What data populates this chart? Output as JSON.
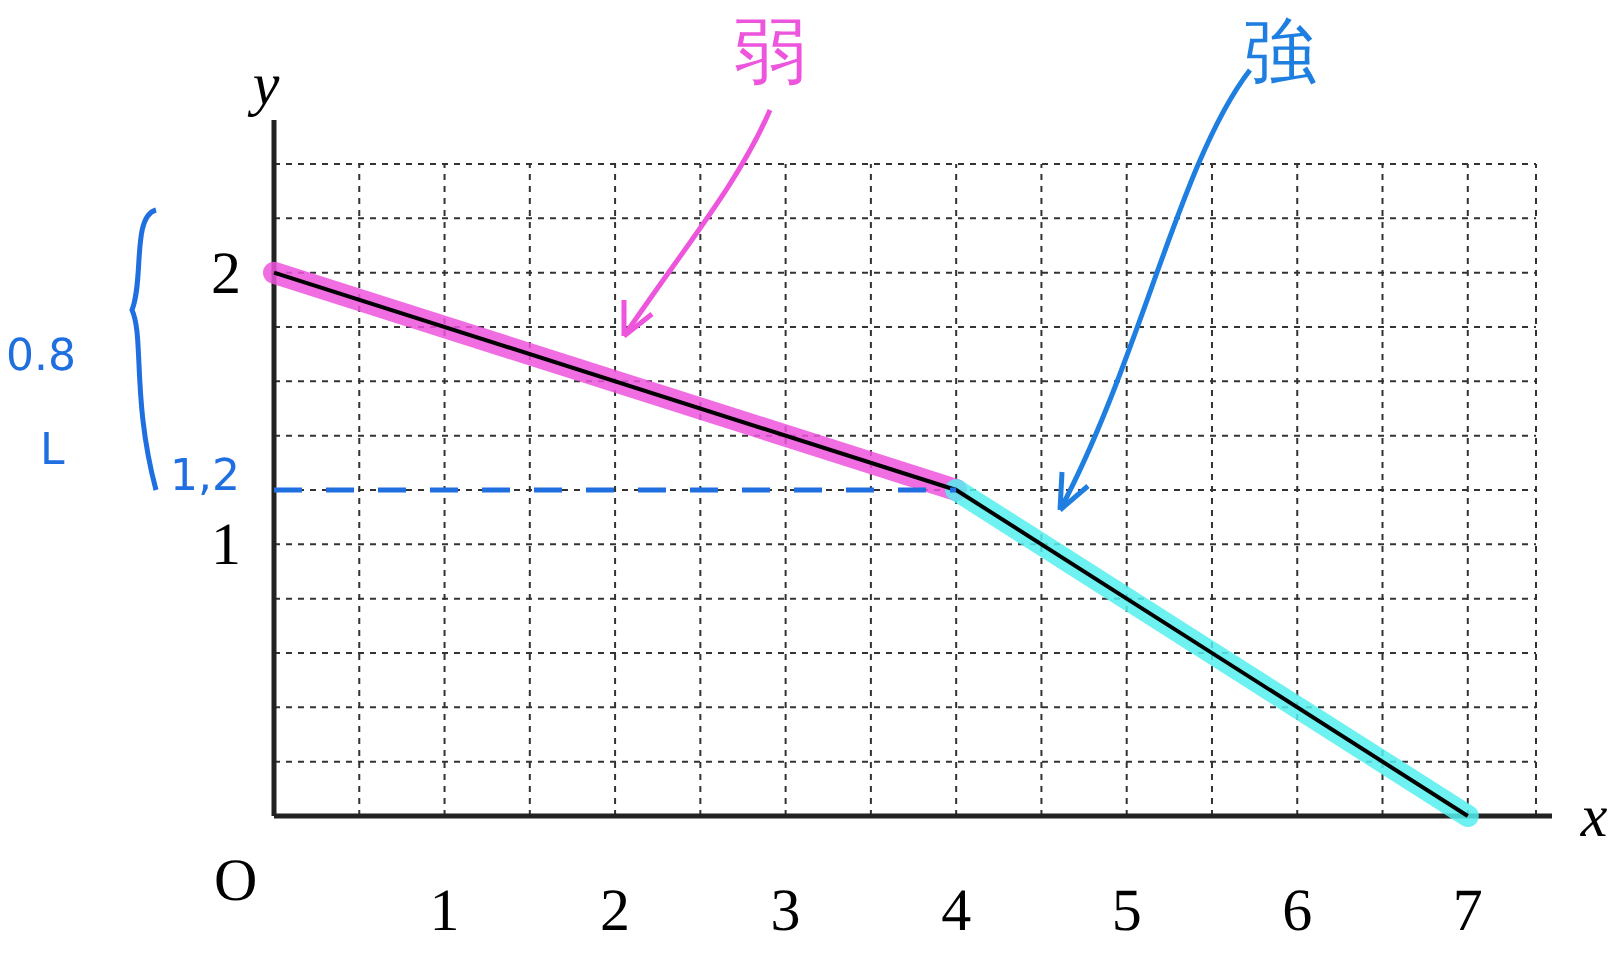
{
  "chart_data": {
    "type": "line",
    "xlabel": "x",
    "ylabel": "y",
    "xlim": [
      0,
      7.4
    ],
    "ylim": [
      0,
      2.4
    ],
    "xticks": [
      {
        "value": 0.5,
        "label": null
      },
      1,
      {
        "value": 1.5,
        "label": null
      },
      2,
      {
        "value": 2.5,
        "label": null
      },
      3,
      {
        "value": 3.5,
        "label": null
      },
      4,
      {
        "value": 4.5,
        "label": null
      },
      5,
      {
        "value": 5.5,
        "label": null
      },
      6,
      {
        "value": 6.5,
        "label": null
      },
      7,
      {
        "value": 7.4,
        "label": null
      }
    ],
    "yticks": [
      {
        "value": 0.2,
        "label": null
      },
      {
        "value": 0.4,
        "label": null
      },
      {
        "value": 0.6,
        "label": null
      },
      {
        "value": 0.8,
        "label": null
      },
      1,
      {
        "value": 1.2,
        "label": null
      },
      {
        "value": 1.4,
        "label": null
      },
      {
        "value": 1.6,
        "label": null
      },
      {
        "value": 1.8,
        "label": null
      },
      2,
      {
        "value": 2.2,
        "label": null
      },
      {
        "value": 2.4,
        "label": null
      }
    ],
    "grid": true,
    "series": [
      {
        "name": "弱",
        "color": "#ee55dd",
        "x": [
          0,
          4
        ],
        "values": [
          2,
          1.2
        ]
      },
      {
        "name": "強",
        "color": "#55eeee",
        "x": [
          4,
          7
        ],
        "values": [
          1.2,
          0
        ]
      },
      {
        "color": "#000000",
        "x": [
          0,
          4,
          7
        ],
        "values": [
          2,
          1.2,
          0
        ]
      },
      {
        "color": "#1f6fe0",
        "x": [
          0,
          4
        ],
        "values": [
          1.2,
          1.2
        ],
        "line_style": "dashed"
      }
    ],
    "annotations": [
      "O",
      "0.8",
      "L",
      "1,2"
    ]
  }
}
